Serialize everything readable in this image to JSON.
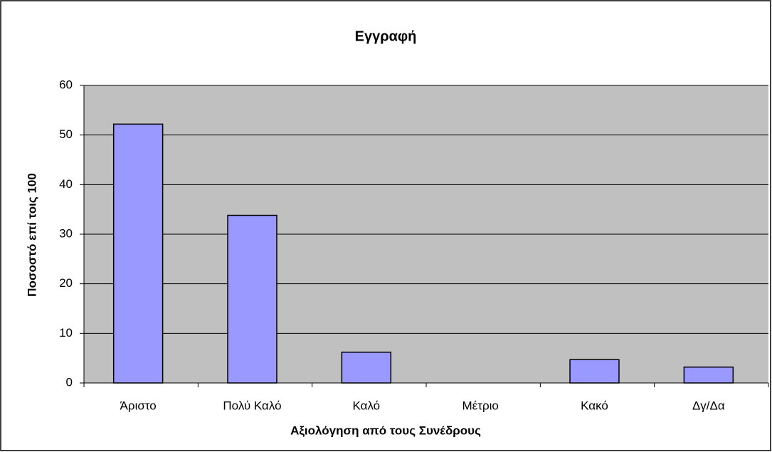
{
  "chart_data": {
    "type": "bar",
    "title": "Εγγραφή",
    "x_label": "Αξιολόγηση από τους Συνέδρους",
    "y_label": "Ποσοστό επί τοις 100",
    "categories": [
      "Άριστο",
      "Πολύ Καλό",
      "Καλό",
      "Μέτριο",
      "Κακό",
      "Δγ/Δα"
    ],
    "values": [
      52.2,
      33.8,
      6.2,
      0,
      4.7,
      3.2
    ],
    "color": "#9999ff",
    "ylim": [
      0,
      60
    ],
    "yticks": [
      0,
      10,
      20,
      30,
      40,
      50,
      60
    ],
    "grid": true
  }
}
